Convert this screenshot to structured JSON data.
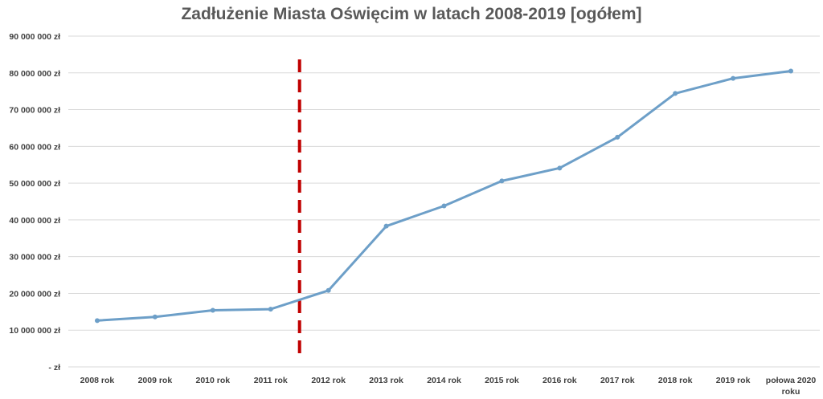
{
  "chart_data": {
    "type": "line",
    "title": "Zadłużenie Miasta Oświęcim w latach 2008-2019 [ogółem]",
    "xlabel": "",
    "ylabel": "",
    "categories": [
      "2008 rok",
      "2009 rok",
      "2010 rok",
      "2011 rok",
      "2012 rok",
      "2013 rok",
      "2014 rok",
      "2015 rok",
      "2016 rok",
      "2017 rok",
      "2018 rok",
      "2019 rok",
      "połowa 2020 roku"
    ],
    "series": [
      {
        "values": [
          12600000,
          13600000,
          15400000,
          15700000,
          20800000,
          38300000,
          43800000,
          50600000,
          54100000,
          62500000,
          74400000,
          78500000,
          80500000
        ],
        "color": "#6d9fc8"
      }
    ],
    "ylim": [
      0,
      90000000
    ],
    "yticks": [
      {
        "value": 0,
        "label": "- zł"
      },
      {
        "value": 10000000,
        "label": "10 000 000 zł"
      },
      {
        "value": 20000000,
        "label": "20 000 000 zł"
      },
      {
        "value": 30000000,
        "label": "30 000 000 zł"
      },
      {
        "value": 40000000,
        "label": "40 000 000 zł"
      },
      {
        "value": 50000000,
        "label": "50 000 000 zł"
      },
      {
        "value": 60000000,
        "label": "60 000 000 zł"
      },
      {
        "value": 70000000,
        "label": "70 000 000 zł"
      },
      {
        "value": 80000000,
        "label": "80 000 000 zł"
      },
      {
        "value": 90000000,
        "label": "90 000 000 zł"
      }
    ],
    "grid": true,
    "legend": "none",
    "marker_line": {
      "between": [
        "2011 rok",
        "2012 rok"
      ],
      "style": "dashed",
      "color": "#c00000"
    }
  }
}
